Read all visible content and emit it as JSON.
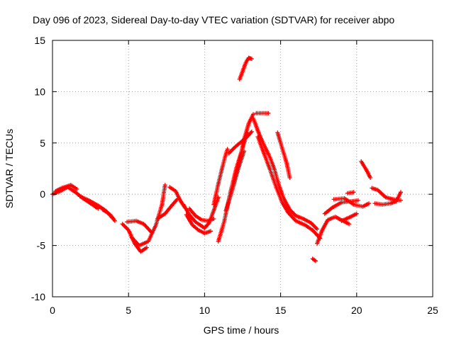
{
  "chart_data": {
    "type": "scatter",
    "title": "Day 096 of 2023, Sidereal Day-to-day VTEC variation (SDTVAR) for receiver abpo",
    "xlabel": "GPS time / hours",
    "ylabel": "SDTVAR / TECUs",
    "xlim": [
      0,
      25
    ],
    "ylim": [
      -10,
      15
    ],
    "xticks": [
      "0",
      "5",
      "10",
      "15",
      "20",
      "25"
    ],
    "yticks": [
      "-10",
      "-5",
      "0",
      "5",
      "10",
      "15"
    ],
    "grid": true,
    "marker": "+",
    "series_color": "#ff0000",
    "tracks": [
      [
        [
          0.0,
          0.0
        ],
        [
          0.5,
          0.3
        ],
        [
          1.0,
          0.7
        ],
        [
          1.5,
          0.2
        ],
        [
          2.0,
          -0.4
        ],
        [
          2.5,
          -0.9
        ],
        [
          3.0,
          -1.4
        ]
      ],
      [
        [
          0.2,
          0.3
        ],
        [
          0.6,
          0.6
        ],
        [
          1.2,
          0.9
        ],
        [
          1.6,
          0.5
        ]
      ],
      [
        [
          1.8,
          -0.2
        ],
        [
          2.4,
          -0.6
        ],
        [
          3.0,
          -1.1
        ],
        [
          3.5,
          -1.6
        ],
        [
          4.0,
          -2.4
        ]
      ],
      [
        [
          3.3,
          -1.5
        ],
        [
          3.8,
          -2.0
        ],
        [
          4.1,
          -2.6
        ]
      ],
      [
        [
          4.6,
          -2.9
        ],
        [
          5.0,
          -3.5
        ],
        [
          5.4,
          -4.8
        ],
        [
          5.8,
          -5.6
        ],
        [
          6.2,
          -5.2
        ]
      ],
      [
        [
          4.9,
          -2.7
        ],
        [
          5.5,
          -2.6
        ],
        [
          6.0,
          -2.9
        ],
        [
          6.5,
          -3.7
        ]
      ],
      [
        [
          5.2,
          -4.2
        ],
        [
          5.7,
          -5.0
        ],
        [
          6.3,
          -4.6
        ],
        [
          6.8,
          -3.0
        ],
        [
          7.2,
          -1.0
        ],
        [
          7.4,
          0.9
        ]
      ],
      [
        [
          6.9,
          -2.4
        ],
        [
          7.4,
          -1.9
        ],
        [
          7.9,
          -1.0
        ],
        [
          8.2,
          -0.5
        ]
      ],
      [
        [
          7.7,
          0.7
        ],
        [
          8.1,
          0.3
        ],
        [
          8.4,
          -0.6
        ],
        [
          8.7,
          -1.3
        ]
      ],
      [
        [
          8.6,
          -1.0
        ],
        [
          9.0,
          -2.0
        ],
        [
          9.4,
          -2.7
        ],
        [
          9.8,
          -3.1
        ],
        [
          10.0,
          -3.3
        ],
        [
          10.3,
          -2.8
        ],
        [
          10.6,
          -1.6
        ],
        [
          10.9,
          -0.3
        ]
      ],
      [
        [
          8.8,
          -2.0
        ],
        [
          9.2,
          -3.0
        ],
        [
          9.6,
          -3.5
        ],
        [
          10.0,
          -3.8
        ],
        [
          10.4,
          -3.6
        ]
      ],
      [
        [
          9.0,
          -1.4
        ],
        [
          9.4,
          -2.1
        ],
        [
          9.8,
          -2.5
        ],
        [
          10.2,
          -2.6
        ],
        [
          10.6,
          -2.4
        ]
      ],
      [
        [
          10.6,
          -1.0
        ],
        [
          10.9,
          1.0
        ],
        [
          11.3,
          3.4
        ],
        [
          11.5,
          4.4
        ]
      ],
      [
        [
          10.9,
          -4.6
        ],
        [
          11.3,
          -2.6
        ],
        [
          11.7,
          0.2
        ],
        [
          12.1,
          2.6
        ],
        [
          12.5,
          4.5
        ],
        [
          12.8,
          6.0
        ]
      ],
      [
        [
          11.4,
          -1.6
        ],
        [
          11.8,
          0.3
        ],
        [
          12.2,
          2.4
        ],
        [
          12.6,
          4.2
        ]
      ],
      [
        [
          11.6,
          4.0
        ],
        [
          12.0,
          4.6
        ],
        [
          12.4,
          5.1
        ],
        [
          12.8,
          5.6
        ],
        [
          13.1,
          6.1
        ]
      ],
      [
        [
          11.9,
          1.2
        ],
        [
          12.3,
          3.2
        ],
        [
          12.6,
          5.4
        ],
        [
          12.9,
          6.9
        ],
        [
          13.2,
          7.8
        ]
      ],
      [
        [
          12.3,
          11.2
        ],
        [
          12.5,
          12.0
        ],
        [
          12.7,
          12.8
        ],
        [
          12.9,
          13.3
        ],
        [
          13.1,
          13.2
        ]
      ],
      [
        [
          13.4,
          7.9
        ],
        [
          13.8,
          7.9
        ],
        [
          14.2,
          7.9
        ]
      ],
      [
        [
          13.2,
          7.4
        ],
        [
          13.5,
          6.2
        ],
        [
          13.9,
          4.8
        ],
        [
          14.3,
          3.6
        ],
        [
          14.6,
          2.4
        ],
        [
          14.9,
          0.8
        ],
        [
          15.2,
          -0.4
        ],
        [
          15.6,
          -1.5
        ],
        [
          16.0,
          -2.1
        ],
        [
          16.5,
          -2.4
        ],
        [
          17.0,
          -2.8
        ],
        [
          17.4,
          -3.4
        ]
      ],
      [
        [
          13.5,
          5.6
        ],
        [
          13.9,
          4.0
        ],
        [
          14.3,
          2.4
        ],
        [
          14.7,
          0.7
        ],
        [
          15.1,
          -0.8
        ],
        [
          15.5,
          -1.8
        ],
        [
          16.0,
          -2.6
        ],
        [
          16.6,
          -3.0
        ],
        [
          17.1,
          -3.5
        ],
        [
          17.6,
          -4.3
        ]
      ],
      [
        [
          14.8,
          6.0
        ],
        [
          15.1,
          4.5
        ],
        [
          15.4,
          3.0
        ],
        [
          15.6,
          1.6
        ]
      ],
      [
        [
          17.1,
          -6.3
        ],
        [
          17.3,
          -6.5
        ]
      ],
      [
        [
          17.4,
          -4.8
        ],
        [
          17.7,
          -3.6
        ],
        [
          18.1,
          -2.5
        ],
        [
          18.6,
          -2.2
        ],
        [
          19.1,
          -2.6
        ],
        [
          19.5,
          -2.9
        ]
      ],
      [
        [
          17.9,
          -1.9
        ],
        [
          18.4,
          -1.3
        ],
        [
          19.0,
          -0.8
        ],
        [
          19.6,
          -0.7
        ],
        [
          20.1,
          -0.6
        ]
      ],
      [
        [
          18.5,
          -0.5
        ],
        [
          19.2,
          -0.4
        ],
        [
          19.8,
          -1.0
        ],
        [
          20.4,
          -1.2
        ],
        [
          20.8,
          -0.9
        ]
      ],
      [
        [
          19.0,
          -2.6
        ],
        [
          19.6,
          -2.2
        ],
        [
          20.0,
          -1.9
        ]
      ],
      [
        [
          19.4,
          0.1
        ],
        [
          19.8,
          0.2
        ]
      ],
      [
        [
          20.3,
          3.2
        ],
        [
          20.5,
          2.7
        ],
        [
          20.7,
          2.2
        ],
        [
          20.9,
          1.6
        ]
      ],
      [
        [
          21.0,
          0.6
        ],
        [
          21.4,
          0.4
        ],
        [
          21.9,
          -0.3
        ],
        [
          22.4,
          -0.5
        ],
        [
          22.9,
          -0.6
        ]
      ],
      [
        [
          21.2,
          -0.9
        ],
        [
          21.7,
          -1.0
        ],
        [
          22.2,
          -0.9
        ],
        [
          22.6,
          -0.7
        ],
        [
          22.9,
          0.2
        ]
      ]
    ]
  }
}
